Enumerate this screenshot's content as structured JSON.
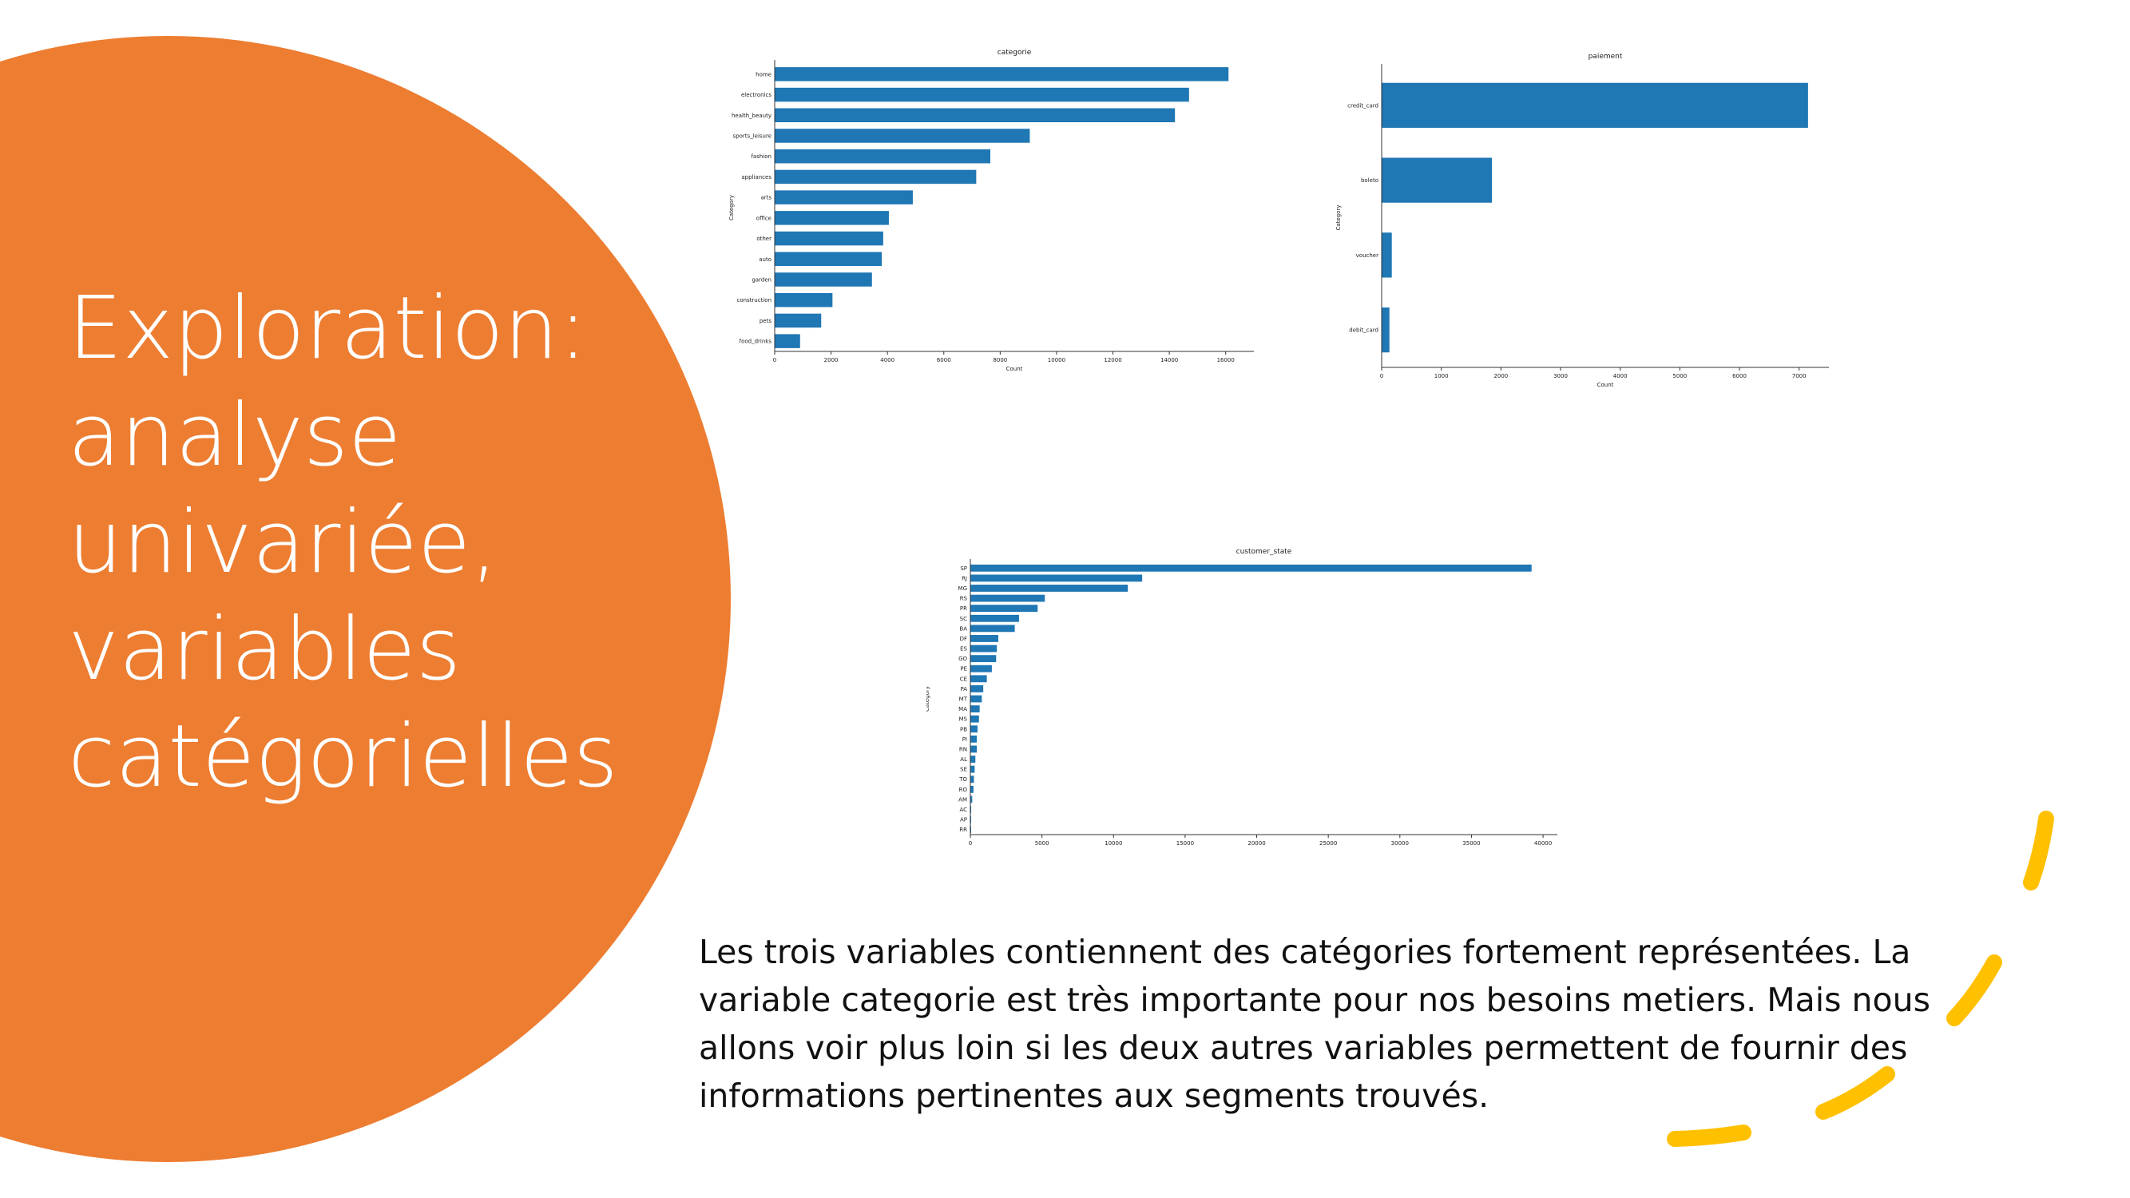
{
  "slide": {
    "title_lines": [
      "Exploration:",
      "analyse",
      "univariée,",
      "variables",
      "catégorielles"
    ],
    "body": "Les trois variables contiennent des catégories fortement représentées. La variable categorie est très importante pour nos besoins metiers. Mais nous allons voir plus loin si les deux autres variables permettent de fournir des informations pertinentes aux segments trouvés.",
    "colors": {
      "circle": "#ED7D31",
      "bar": "#1F77B4",
      "dash": "#FFC000"
    }
  },
  "chart_data": [
    {
      "type": "bar",
      "orientation": "horizontal",
      "title": "categorie",
      "xlabel": "Count",
      "ylabel": "Category",
      "categories": [
        "home",
        "electronics",
        "health_beauty",
        "sports_leisure",
        "fashion",
        "appliances",
        "arts",
        "office",
        "other",
        "auto",
        "garden",
        "construction",
        "pets",
        "food_drinks"
      ],
      "values": [
        16100,
        14700,
        14200,
        9050,
        7650,
        7150,
        4900,
        4050,
        3850,
        3800,
        3450,
        2050,
        1650,
        900
      ],
      "xlim": [
        0,
        17000
      ],
      "xticks": [
        0,
        2000,
        4000,
        6000,
        8000,
        10000,
        12000,
        14000,
        16000
      ],
      "grid": false
    },
    {
      "type": "bar",
      "orientation": "horizontal",
      "title": "paiement",
      "xlabel": "Count",
      "ylabel": "Category",
      "categories": [
        "credit_card",
        "boleto",
        "voucher",
        "debit_card"
      ],
      "values": [
        7150,
        1850,
        170,
        130
      ],
      "xlim": [
        0,
        7500
      ],
      "xticks": [
        0,
        1000,
        2000,
        3000,
        4000,
        5000,
        6000,
        7000
      ],
      "grid": false
    },
    {
      "type": "bar",
      "orientation": "horizontal",
      "title": "customer_state",
      "xlabel": "",
      "ylabel": "Category",
      "categories": [
        "SP",
        "RJ",
        "MG",
        "RS",
        "PR",
        "SC",
        "BA",
        "DF",
        "ES",
        "GO",
        "PE",
        "CE",
        "PA",
        "MT",
        "MA",
        "MS",
        "PB",
        "PI",
        "RN",
        "AL",
        "SE",
        "TO",
        "RO",
        "AM",
        "AC",
        "AP",
        "RR"
      ],
      "values": [
        39200,
        12000,
        11000,
        5200,
        4700,
        3400,
        3100,
        1950,
        1850,
        1800,
        1500,
        1150,
        900,
        800,
        650,
        600,
        500,
        450,
        450,
        350,
        300,
        250,
        220,
        130,
        60,
        50,
        30
      ],
      "xlim": [
        0,
        41000
      ],
      "xticks": [
        0,
        5000,
        10000,
        15000,
        20000,
        25000,
        30000,
        35000,
        40000
      ],
      "grid": false
    }
  ]
}
